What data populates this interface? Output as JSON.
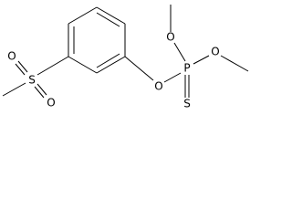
{
  "atoms": [
    {
      "label": "S"
    },
    {
      "label": "O"
    },
    {
      "label": "O"
    },
    {
      "label": "O"
    },
    {
      "label": "P"
    },
    {
      "label": "O"
    },
    {
      "label": "O"
    },
    {
      "label": "S"
    }
  ]
}
